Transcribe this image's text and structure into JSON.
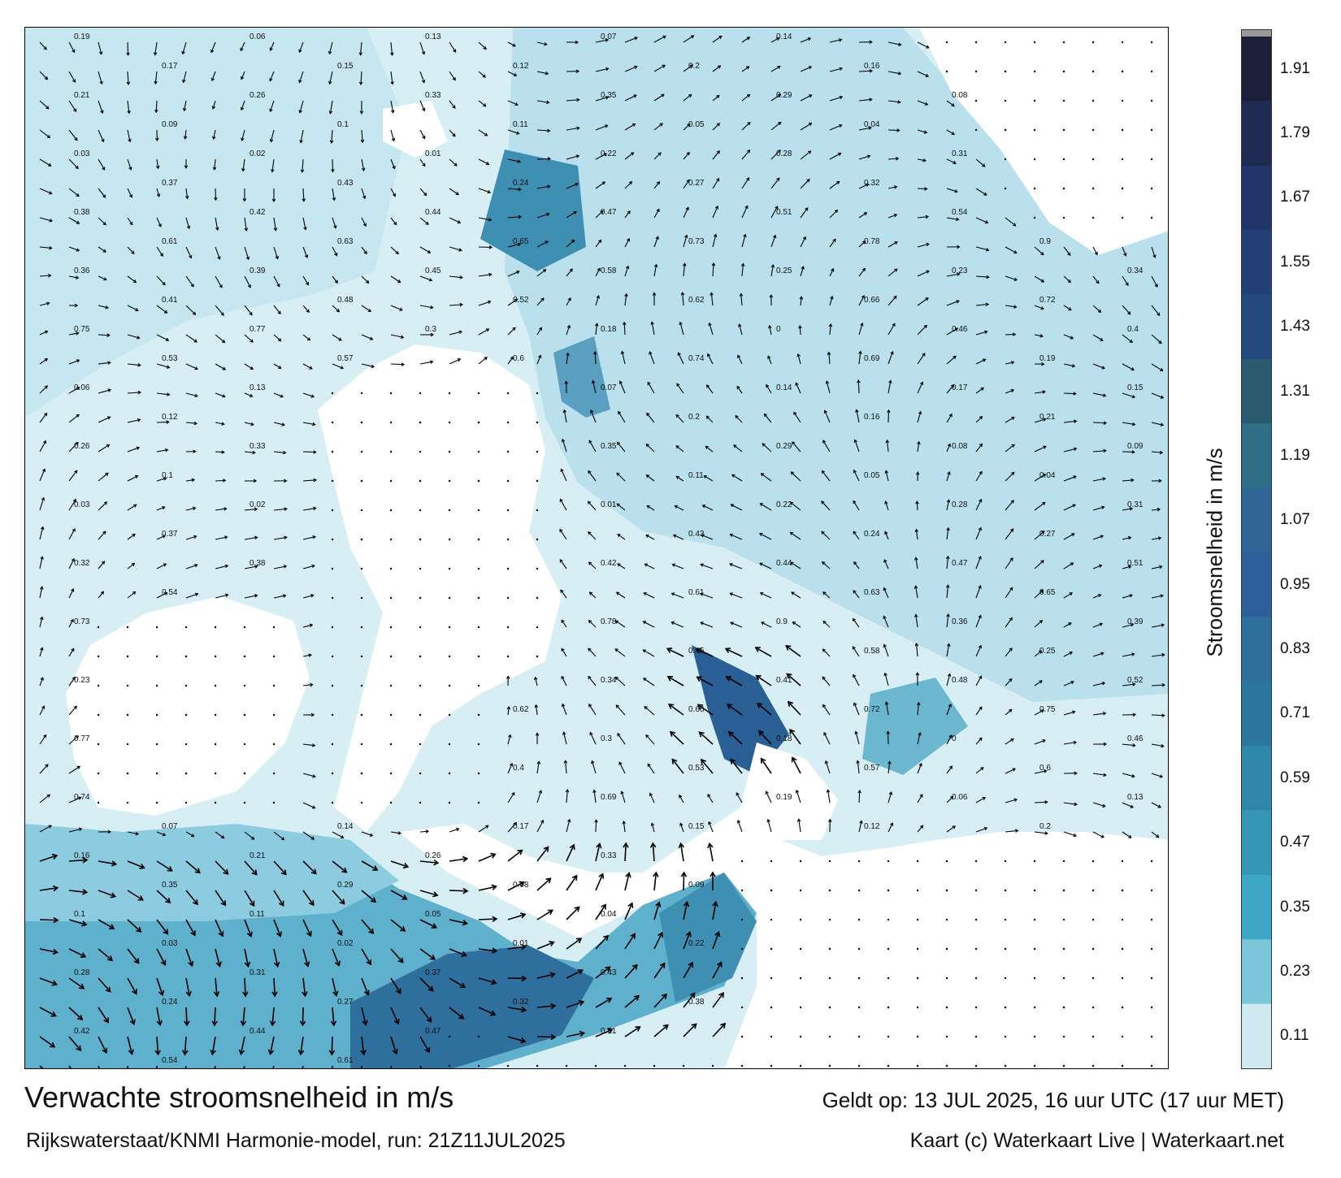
{
  "title": "Verwachte stroomsnelheid in m/s",
  "subtitle": "Rijkswaterstaat/KNMI Harmonie-model, run: 21Z11JUL2025",
  "valid_time": "Geldt op: 13 JUL 2025, 16 uur UTC (17 uur MET)",
  "credit": "Kaart (c) Waterkaart Live | Waterkaart.net",
  "colorbar": {
    "title": "Stroomsnelheid in m/s",
    "ticks": [
      "1.91",
      "1.79",
      "1.67",
      "1.55",
      "1.43",
      "1.31",
      "1.19",
      "1.07",
      "0.95",
      "0.83",
      "0.71",
      "0.59",
      "0.47",
      "0.35",
      "0.23",
      "0.11"
    ],
    "colors": [
      "#1b1f3a",
      "#1e2a52",
      "#21356a",
      "#233f78",
      "#24497f",
      "#2a5a6e",
      "#2f6f86",
      "#2f6496",
      "#2d5f9b",
      "#2f6f9e",
      "#2b77a0",
      "#2f88ac",
      "#3596b8",
      "#3ea7c7",
      "#7cc6d9",
      "#cfe9f1"
    ]
  },
  "map": {
    "water_light": "#d7eef5",
    "water_mid": "#86c7da",
    "water_strong": "#3f8fb3",
    "water_dark": "#2a5f96",
    "land": "#ffffff"
  },
  "map_values": [
    "0.19",
    "0.06",
    "0.13",
    "0.07",
    "0.14",
    "0.17",
    "0.15",
    "0.12",
    "0.2",
    "0.16",
    "0.21",
    "0.26",
    "0.33",
    "0.35",
    "0.29",
    "0.08",
    "0.09",
    "0.1",
    "0.11",
    "0.05",
    "0.04",
    "0.03",
    "0.02",
    "0.01",
    "0.22",
    "0.28",
    "0.31",
    "0.37",
    "0.43",
    "0.24",
    "0.27",
    "0.32",
    "0.38",
    "0.42",
    "0.44",
    "0.47",
    "0.51",
    "0.54",
    "0.61",
    "0.63",
    "0.65",
    "0.73",
    "0.78",
    "0.9",
    "0.36",
    "0.39",
    "0.45",
    "0.58",
    "0.25",
    "0.23",
    "0.34",
    "0.41",
    "0.48",
    "0.52",
    "0.62",
    "0.66",
    "0.72",
    "0.75",
    "0.77",
    "0.3",
    "0.18",
    "0",
    "0.46",
    "0.4",
    "0.53",
    "0.57",
    "0.6",
    "0.74",
    "0.69"
  ]
}
